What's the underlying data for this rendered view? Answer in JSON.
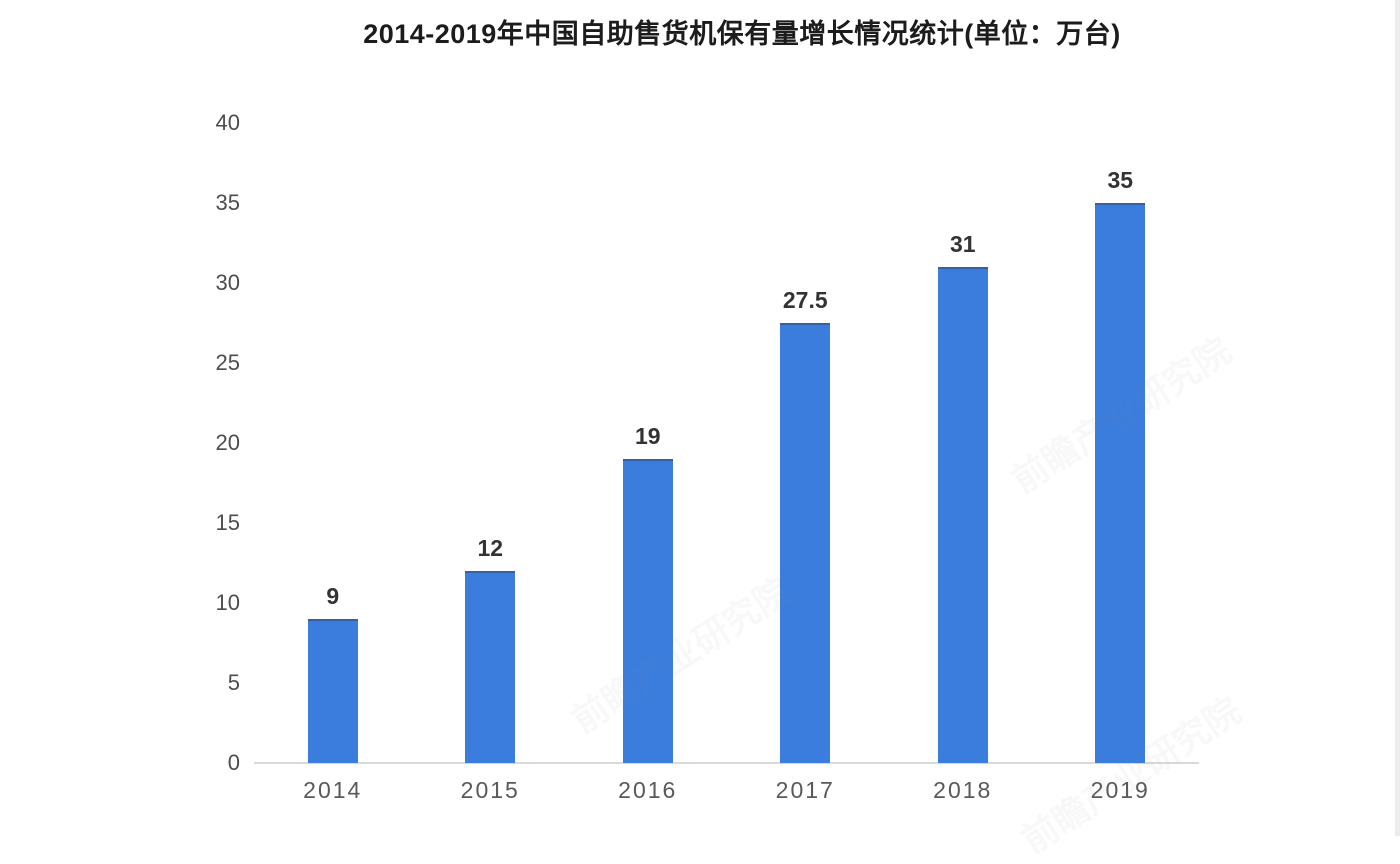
{
  "chart_data": {
    "type": "bar",
    "title": "2014-2019年中国自助售货机保有量增长情况统计(单位：万台)",
    "categories": [
      "2014",
      "2015",
      "2016",
      "2017",
      "2018",
      "2019"
    ],
    "values": [
      9,
      12,
      19,
      27.5,
      31,
      35
    ],
    "value_labels": [
      "9",
      "12",
      "19",
      "27.5",
      "31",
      "35"
    ],
    "xlabel": "",
    "ylabel": "",
    "ylim": [
      0,
      40
    ],
    "yticks": [
      0,
      5,
      10,
      15,
      20,
      25,
      30,
      35,
      40
    ],
    "grid": false,
    "legend": "none",
    "bar_color": "#3b7ddc",
    "axis_line_color": "#d9d9d9",
    "tick_label_color": "#4d4d4d",
    "value_label_color": "#333333",
    "title_color": "#1c1c1c"
  },
  "watermark": {
    "text": "前瞻产业研究院",
    "color": "#8d96a8"
  }
}
